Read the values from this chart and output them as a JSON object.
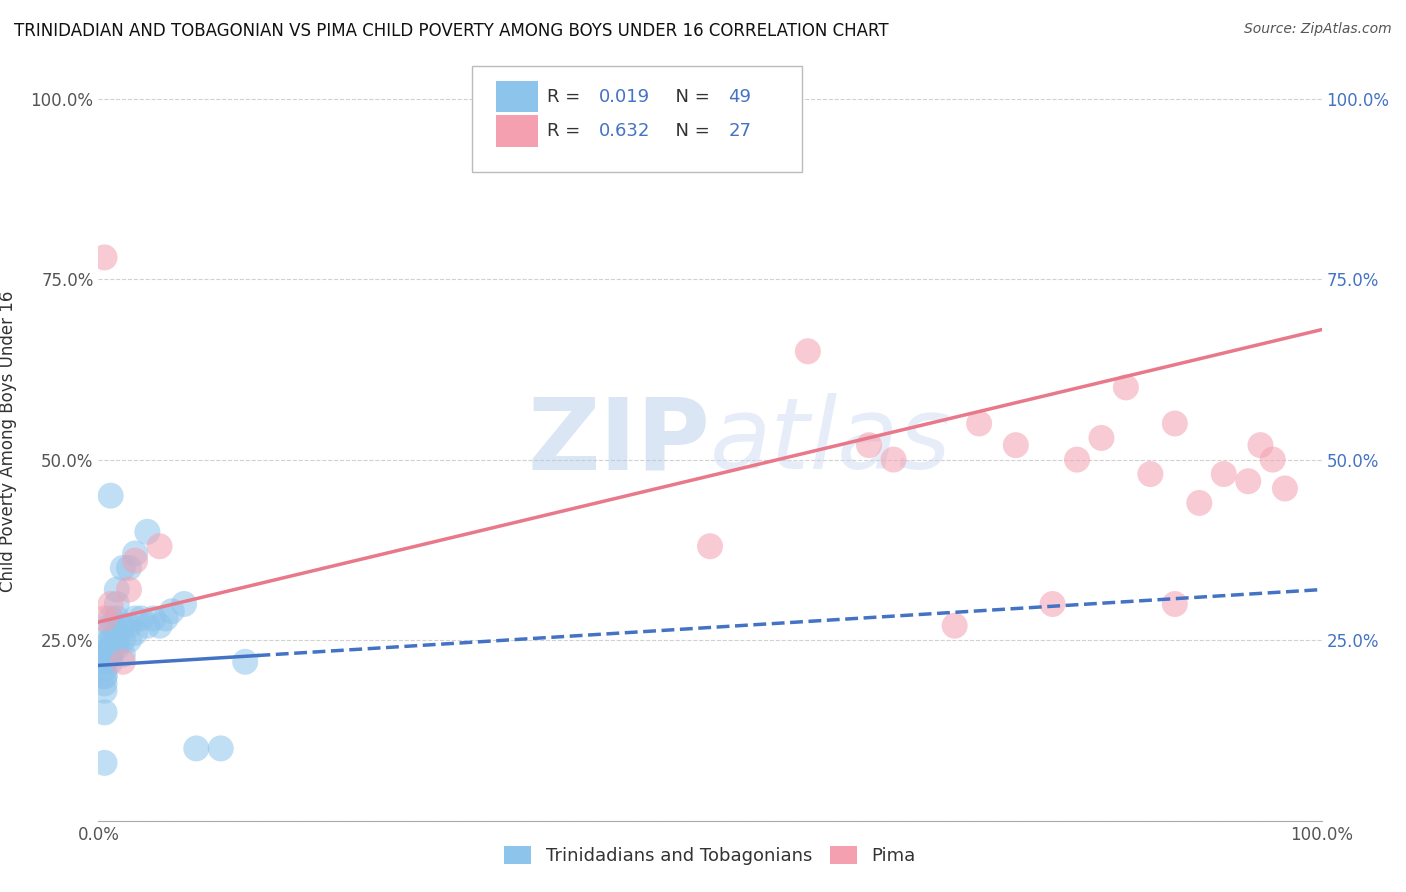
{
  "title": "TRINIDADIAN AND TOBAGONIAN VS PIMA CHILD POVERTY AMONG BOYS UNDER 16 CORRELATION CHART",
  "source": "Source: ZipAtlas.com",
  "ylabel": "Child Poverty Among Boys Under 16",
  "legend_label1": "Trinidadians and Tobagonians",
  "legend_label2": "Pima",
  "R1": "0.019",
  "N1": "49",
  "R2": "0.632",
  "N2": "27",
  "color_blue": "#8DC4EC",
  "color_pink": "#F4A0B0",
  "color_blue_line": "#4472C4",
  "color_pink_line": "#E8788A",
  "color_blue_text": "#4472C4",
  "watermark_color": "#C8D8F0",
  "background_color": "#FFFFFF",
  "grid_color": "#CCCCCC",
  "blue_scatter_x": [
    0.005,
    0.005,
    0.005,
    0.005,
    0.005,
    0.005,
    0.005,
    0.005,
    0.005,
    0.005,
    0.01,
    0.01,
    0.01,
    0.01,
    0.01,
    0.01,
    0.01,
    0.01,
    0.01,
    0.01,
    0.015,
    0.015,
    0.015,
    0.015,
    0.015,
    0.015,
    0.02,
    0.02,
    0.02,
    0.02,
    0.025,
    0.025,
    0.025,
    0.03,
    0.03,
    0.03,
    0.035,
    0.04,
    0.04,
    0.045,
    0.05,
    0.055,
    0.06,
    0.07,
    0.08,
    0.1,
    0.12,
    0.01,
    0.005
  ],
  "blue_scatter_y": [
    0.18,
    0.19,
    0.2,
    0.2,
    0.21,
    0.22,
    0.22,
    0.23,
    0.23,
    0.15,
    0.22,
    0.23,
    0.23,
    0.24,
    0.24,
    0.25,
    0.25,
    0.26,
    0.27,
    0.28,
    0.24,
    0.25,
    0.26,
    0.28,
    0.3,
    0.32,
    0.23,
    0.25,
    0.27,
    0.35,
    0.25,
    0.27,
    0.35,
    0.26,
    0.28,
    0.37,
    0.28,
    0.27,
    0.4,
    0.28,
    0.27,
    0.28,
    0.29,
    0.3,
    0.1,
    0.1,
    0.22,
    0.45,
    0.08
  ],
  "pink_scatter_x": [
    0.005,
    0.005,
    0.01,
    0.02,
    0.025,
    0.03,
    0.05,
    0.5,
    0.58,
    0.63,
    0.65,
    0.7,
    0.72,
    0.75,
    0.78,
    0.8,
    0.82,
    0.84,
    0.86,
    0.88,
    0.88,
    0.9,
    0.92,
    0.94,
    0.95,
    0.96,
    0.97
  ],
  "pink_scatter_y": [
    0.78,
    0.28,
    0.3,
    0.22,
    0.32,
    0.36,
    0.38,
    0.38,
    0.65,
    0.52,
    0.5,
    0.27,
    0.55,
    0.52,
    0.3,
    0.5,
    0.53,
    0.6,
    0.48,
    0.55,
    0.3,
    0.44,
    0.48,
    0.47,
    0.52,
    0.5,
    0.46
  ],
  "blue_line_x_solid_start": 0.0,
  "blue_line_x_solid_end": 0.13,
  "blue_line_x_dash_start": 0.13,
  "blue_line_x_dash_end": 1.0,
  "blue_line_y_at_0": 0.215,
  "blue_line_y_at_1": 0.32,
  "pink_line_x_start": 0.0,
  "pink_line_x_end": 1.0,
  "pink_line_y_at_0": 0.275,
  "pink_line_y_at_1": 0.68,
  "xlim": [
    0.0,
    1.0
  ],
  "ylim": [
    0.0,
    1.05
  ],
  "x_tick_positions": [
    0.0,
    1.0
  ],
  "x_tick_labels": [
    "0.0%",
    "100.0%"
  ],
  "y_tick_positions": [
    0.0,
    0.25,
    0.5,
    0.75,
    1.0
  ],
  "y_tick_labels_left": [
    "",
    "25.0%",
    "50.0%",
    "75.0%",
    "100.0%"
  ],
  "y_tick_labels_right": [
    "25.0%",
    "50.0%",
    "75.0%",
    "100.0%"
  ]
}
